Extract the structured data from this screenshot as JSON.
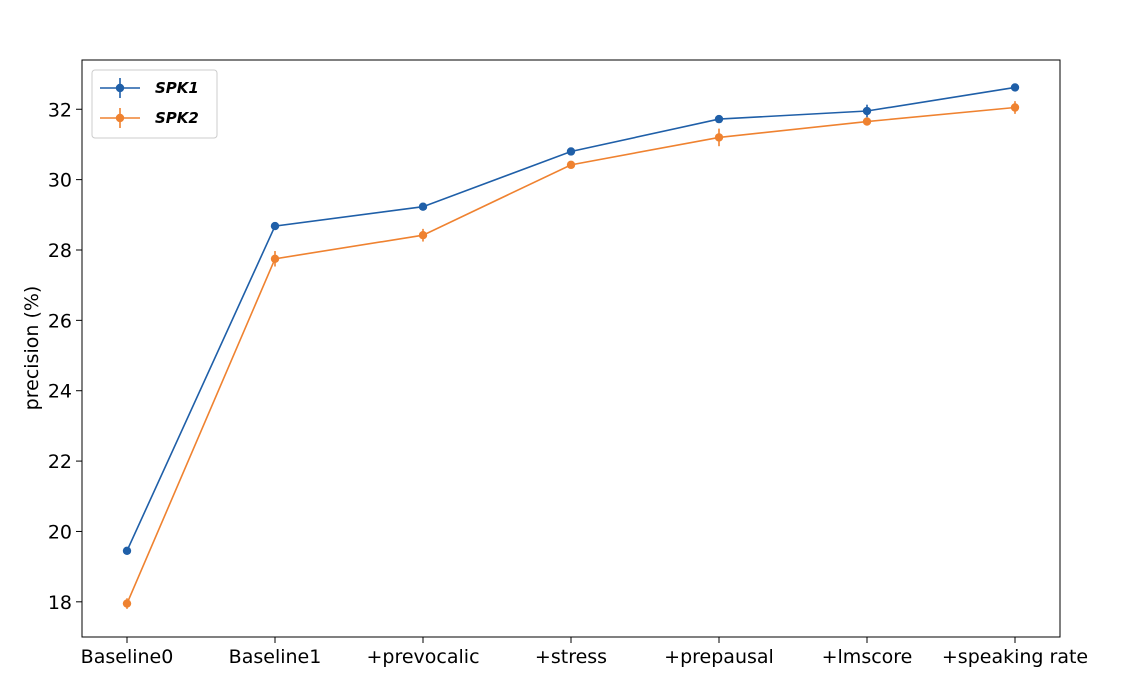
{
  "chart_data": {
    "type": "line",
    "categories": [
      "Baseline0",
      "Baseline1",
      "+prevocalic",
      "+stress",
      "+prepausal",
      "+lmscore",
      "+speaking rate"
    ],
    "ylabel": "precision (%)",
    "xlabel": "",
    "ylim": [
      17.0,
      33.4
    ],
    "yticks": [
      18,
      20,
      22,
      24,
      26,
      28,
      30,
      32
    ],
    "grid": false,
    "legend_position": "top-left",
    "series": [
      {
        "name": "SPK1",
        "color": "#1f5fa8",
        "values": [
          19.45,
          28.68,
          29.23,
          30.8,
          31.72,
          31.95,
          32.62
        ],
        "errors": [
          0.05,
          0.05,
          0.05,
          0.05,
          0.05,
          0.18,
          0.08
        ]
      },
      {
        "name": "SPK2",
        "color": "#ef8230",
        "values": [
          17.95,
          27.75,
          28.42,
          30.42,
          31.2,
          31.65,
          32.05
        ],
        "errors": [
          0.15,
          0.22,
          0.18,
          0.08,
          0.25,
          0.08,
          0.18
        ]
      }
    ]
  }
}
